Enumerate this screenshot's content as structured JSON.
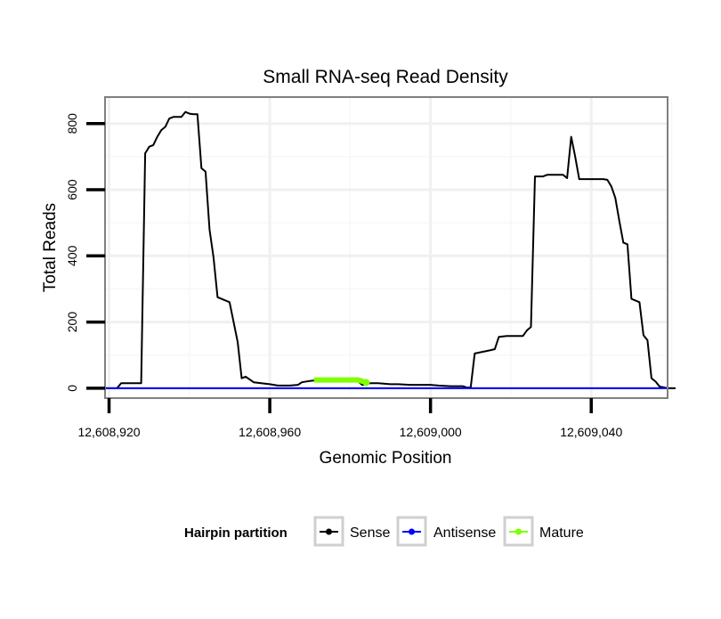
{
  "chart_data": {
    "type": "line",
    "title": "Small RNA-seq Read Density",
    "xlabel": "Genomic Position",
    "ylabel": "Total Reads",
    "xlim": [
      12608919,
      12609059
    ],
    "ylim": [
      -30,
      880
    ],
    "x_ticks": [
      12608920,
      12608960,
      12609000,
      12609040
    ],
    "x_tick_labels": [
      "12,608,920",
      "12,608,960",
      "12,609,000",
      "12,609,040"
    ],
    "y_ticks": [
      0,
      200,
      400,
      600,
      800
    ],
    "y_tick_labels": [
      "0",
      "200",
      "400",
      "600",
      "800"
    ],
    "grid": true,
    "legend": {
      "title": "Hairpin partition",
      "position": "bottom",
      "entries": [
        "Sense",
        "Antisense",
        "Mature"
      ]
    },
    "series": [
      {
        "name": "Sense",
        "color": "#000000",
        "points": [
          [
            12608918,
            0
          ],
          [
            12608922,
            0
          ],
          [
            12608923,
            15
          ],
          [
            12608925,
            15
          ],
          [
            12608928,
            15
          ],
          [
            12608929,
            710
          ],
          [
            12608930,
            730
          ],
          [
            12608931,
            735
          ],
          [
            12608932,
            760
          ],
          [
            12608933,
            780
          ],
          [
            12608934,
            790
          ],
          [
            12608935,
            815
          ],
          [
            12608936,
            820
          ],
          [
            12608937,
            820
          ],
          [
            12608938,
            820
          ],
          [
            12608939,
            835
          ],
          [
            12608940,
            830
          ],
          [
            12608941,
            828
          ],
          [
            12608942,
            828
          ],
          [
            12608943,
            665
          ],
          [
            12608944,
            655
          ],
          [
            12608945,
            480
          ],
          [
            12608946,
            395
          ],
          [
            12608947,
            275
          ],
          [
            12608948,
            270
          ],
          [
            12608949,
            265
          ],
          [
            12608950,
            260
          ],
          [
            12608952,
            140
          ],
          [
            12608953,
            30
          ],
          [
            12608954,
            35
          ],
          [
            12608956,
            18
          ],
          [
            12608960,
            12
          ],
          [
            12608962,
            8
          ],
          [
            12608965,
            8
          ],
          [
            12608967,
            10
          ],
          [
            12608968,
            18
          ],
          [
            12608970,
            22
          ],
          [
            12608972,
            25
          ],
          [
            12608974,
            25
          ],
          [
            12608976,
            25
          ],
          [
            12608978,
            25
          ],
          [
            12608980,
            25
          ],
          [
            12608982,
            20
          ],
          [
            12608983,
            10
          ],
          [
            12608984,
            12
          ],
          [
            12608985,
            15
          ],
          [
            12608987,
            15
          ],
          [
            12608990,
            12
          ],
          [
            12608992,
            12
          ],
          [
            12608995,
            10
          ],
          [
            12608998,
            10
          ],
          [
            12609000,
            10
          ],
          [
            12609002,
            8
          ],
          [
            12609005,
            6
          ],
          [
            12609008,
            6
          ],
          [
            12609009,
            2
          ],
          [
            12609010,
            2
          ],
          [
            12609011,
            105
          ],
          [
            12609013,
            110
          ],
          [
            12609015,
            115
          ],
          [
            12609016,
            118
          ],
          [
            12609017,
            155
          ],
          [
            12609019,
            158
          ],
          [
            12609021,
            158
          ],
          [
            12609023,
            158
          ],
          [
            12609024,
            175
          ],
          [
            12609025,
            185
          ],
          [
            12609026,
            640
          ],
          [
            12609028,
            640
          ],
          [
            12609029,
            645
          ],
          [
            12609031,
            645
          ],
          [
            12609033,
            645
          ],
          [
            12609034,
            635
          ],
          [
            12609035,
            760
          ],
          [
            12609036,
            700
          ],
          [
            12609037,
            632
          ],
          [
            12609039,
            632
          ],
          [
            12609041,
            632
          ],
          [
            12609043,
            632
          ],
          [
            12609044,
            630
          ],
          [
            12609045,
            610
          ],
          [
            12609046,
            575
          ],
          [
            12609047,
            505
          ],
          [
            12609048,
            440
          ],
          [
            12609049,
            435
          ],
          [
            12609050,
            270
          ],
          [
            12609051,
            265
          ],
          [
            12609052,
            260
          ],
          [
            12609053,
            160
          ],
          [
            12609054,
            145
          ],
          [
            12609055,
            30
          ],
          [
            12609056,
            20
          ],
          [
            12609057,
            5
          ],
          [
            12609059,
            0
          ],
          [
            12609061,
            0
          ]
        ]
      },
      {
        "name": "Antisense",
        "color": "#0000ff",
        "points": [
          [
            12608918,
            0
          ],
          [
            12609059,
            0
          ]
        ]
      },
      {
        "name": "Mature",
        "color": "#7fff00",
        "points": [
          [
            12608971,
            25
          ],
          [
            12608973,
            25
          ],
          [
            12608976,
            25
          ],
          [
            12608979,
            25
          ],
          [
            12608982,
            25
          ],
          [
            12608984,
            17
          ]
        ]
      }
    ]
  }
}
